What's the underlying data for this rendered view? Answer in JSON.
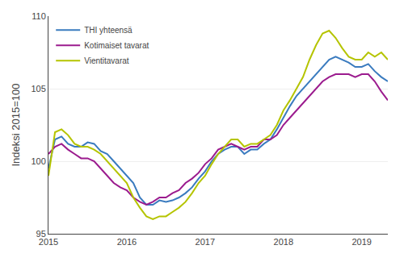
{
  "chart_data": {
    "type": "line",
    "ylabel": "Indeksi 2015=100",
    "categories": [
      "2015",
      null,
      null,
      null,
      null,
      null,
      null,
      null,
      null,
      null,
      null,
      null,
      "2016",
      null,
      null,
      null,
      null,
      null,
      null,
      null,
      null,
      null,
      null,
      null,
      "2017",
      null,
      null,
      null,
      null,
      null,
      null,
      null,
      null,
      null,
      null,
      null,
      "2018",
      null,
      null,
      null,
      null,
      null,
      null,
      null,
      null,
      null,
      null,
      null,
      "2019",
      null,
      null,
      null,
      null
    ],
    "series": [
      {
        "name": "THI yhteensä",
        "color": "#3a7bbf",
        "values": [
          99.5,
          101.5,
          101.7,
          101.2,
          101.0,
          101.0,
          101.3,
          101.2,
          100.7,
          100.5,
          100.0,
          99.5,
          99.0,
          98.5,
          97.5,
          97.0,
          97.0,
          97.3,
          97.2,
          97.3,
          97.5,
          97.8,
          98.2,
          98.8,
          99.3,
          100.0,
          100.5,
          100.8,
          101.0,
          101.0,
          100.5,
          100.8,
          100.8,
          101.2,
          101.5,
          102.2,
          103.0,
          103.8,
          104.5,
          105.0,
          105.5,
          106.0,
          106.5,
          107.0,
          107.2,
          107.0,
          106.8,
          106.5,
          106.5,
          106.7,
          106.2,
          105.8,
          105.5
        ]
      },
      {
        "name": "Kotimaiset tavarat",
        "color": "#9b1b8e",
        "values": [
          100.5,
          101.0,
          101.2,
          100.8,
          100.5,
          100.2,
          100.2,
          100.0,
          99.5,
          99.0,
          98.5,
          98.2,
          98.0,
          97.5,
          97.2,
          97.0,
          97.2,
          97.5,
          97.5,
          97.8,
          98.0,
          98.5,
          98.8,
          99.2,
          99.8,
          100.2,
          100.8,
          101.0,
          101.2,
          101.0,
          100.8,
          101.0,
          101.0,
          101.5,
          101.5,
          101.8,
          102.5,
          103.0,
          103.5,
          104.0,
          104.5,
          105.0,
          105.5,
          105.8,
          106.0,
          106.0,
          106.0,
          105.8,
          106.0,
          106.0,
          105.5,
          104.8,
          104.2
        ]
      },
      {
        "name": "Vientitavarat",
        "color": "#b5c400",
        "values": [
          99.0,
          102.0,
          102.2,
          101.8,
          101.2,
          101.0,
          101.0,
          100.8,
          100.5,
          100.0,
          99.5,
          99.0,
          98.5,
          97.5,
          96.8,
          96.2,
          96.0,
          96.2,
          96.2,
          96.5,
          96.8,
          97.2,
          97.8,
          98.5,
          99.0,
          99.8,
          100.5,
          101.0,
          101.5,
          101.5,
          101.0,
          101.2,
          101.2,
          101.5,
          101.8,
          102.5,
          103.5,
          104.2,
          105.0,
          105.8,
          107.0,
          108.0,
          108.8,
          109.0,
          108.5,
          107.8,
          107.2,
          107.0,
          107.0,
          107.5,
          107.2,
          107.5,
          107.0
        ]
      }
    ],
    "ylim": [
      95,
      110
    ],
    "yticks": [
      95,
      100,
      105,
      110
    ],
    "grid": true,
    "legend": "upper left"
  }
}
